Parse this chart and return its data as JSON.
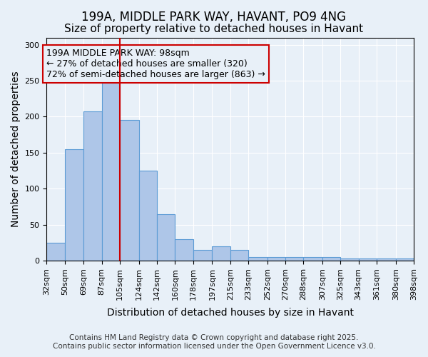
{
  "title1": "199A, MIDDLE PARK WAY, HAVANT, PO9 4NG",
  "title2": "Size of property relative to detached houses in Havant",
  "xlabel": "Distribution of detached houses by size in Havant",
  "ylabel": "Number of detached properties",
  "annotation_line1": "199A MIDDLE PARK WAY: 98sqm",
  "annotation_line2": "← 27% of detached houses are smaller (320)",
  "annotation_line3": "72% of semi-detached houses are larger (863) →",
  "property_size": 98,
  "bins": [
    32,
    50,
    69,
    87,
    105,
    124,
    142,
    160,
    178,
    197,
    215,
    233,
    252,
    270,
    288,
    307,
    325,
    343,
    361,
    380,
    398
  ],
  "counts": [
    25,
    155,
    207,
    250,
    195,
    125,
    65,
    30,
    15,
    20,
    15,
    5,
    5,
    5,
    5,
    5,
    3,
    3,
    3,
    3
  ],
  "bar_color": "#aec6e8",
  "bar_edge_color": "#5b9bd5",
  "line_color": "#cc0000",
  "annotation_box_color": "#cc0000",
  "background_color": "#e8f0f8",
  "footer_line1": "Contains HM Land Registry data © Crown copyright and database right 2025.",
  "footer_line2": "Contains public sector information licensed under the Open Government Licence v3.0.",
  "ylim": [
    0,
    310
  ],
  "title_fontsize": 12,
  "subtitle_fontsize": 11,
  "axis_fontsize": 10,
  "tick_fontsize": 8,
  "annotation_fontsize": 9,
  "footer_fontsize": 7.5
}
